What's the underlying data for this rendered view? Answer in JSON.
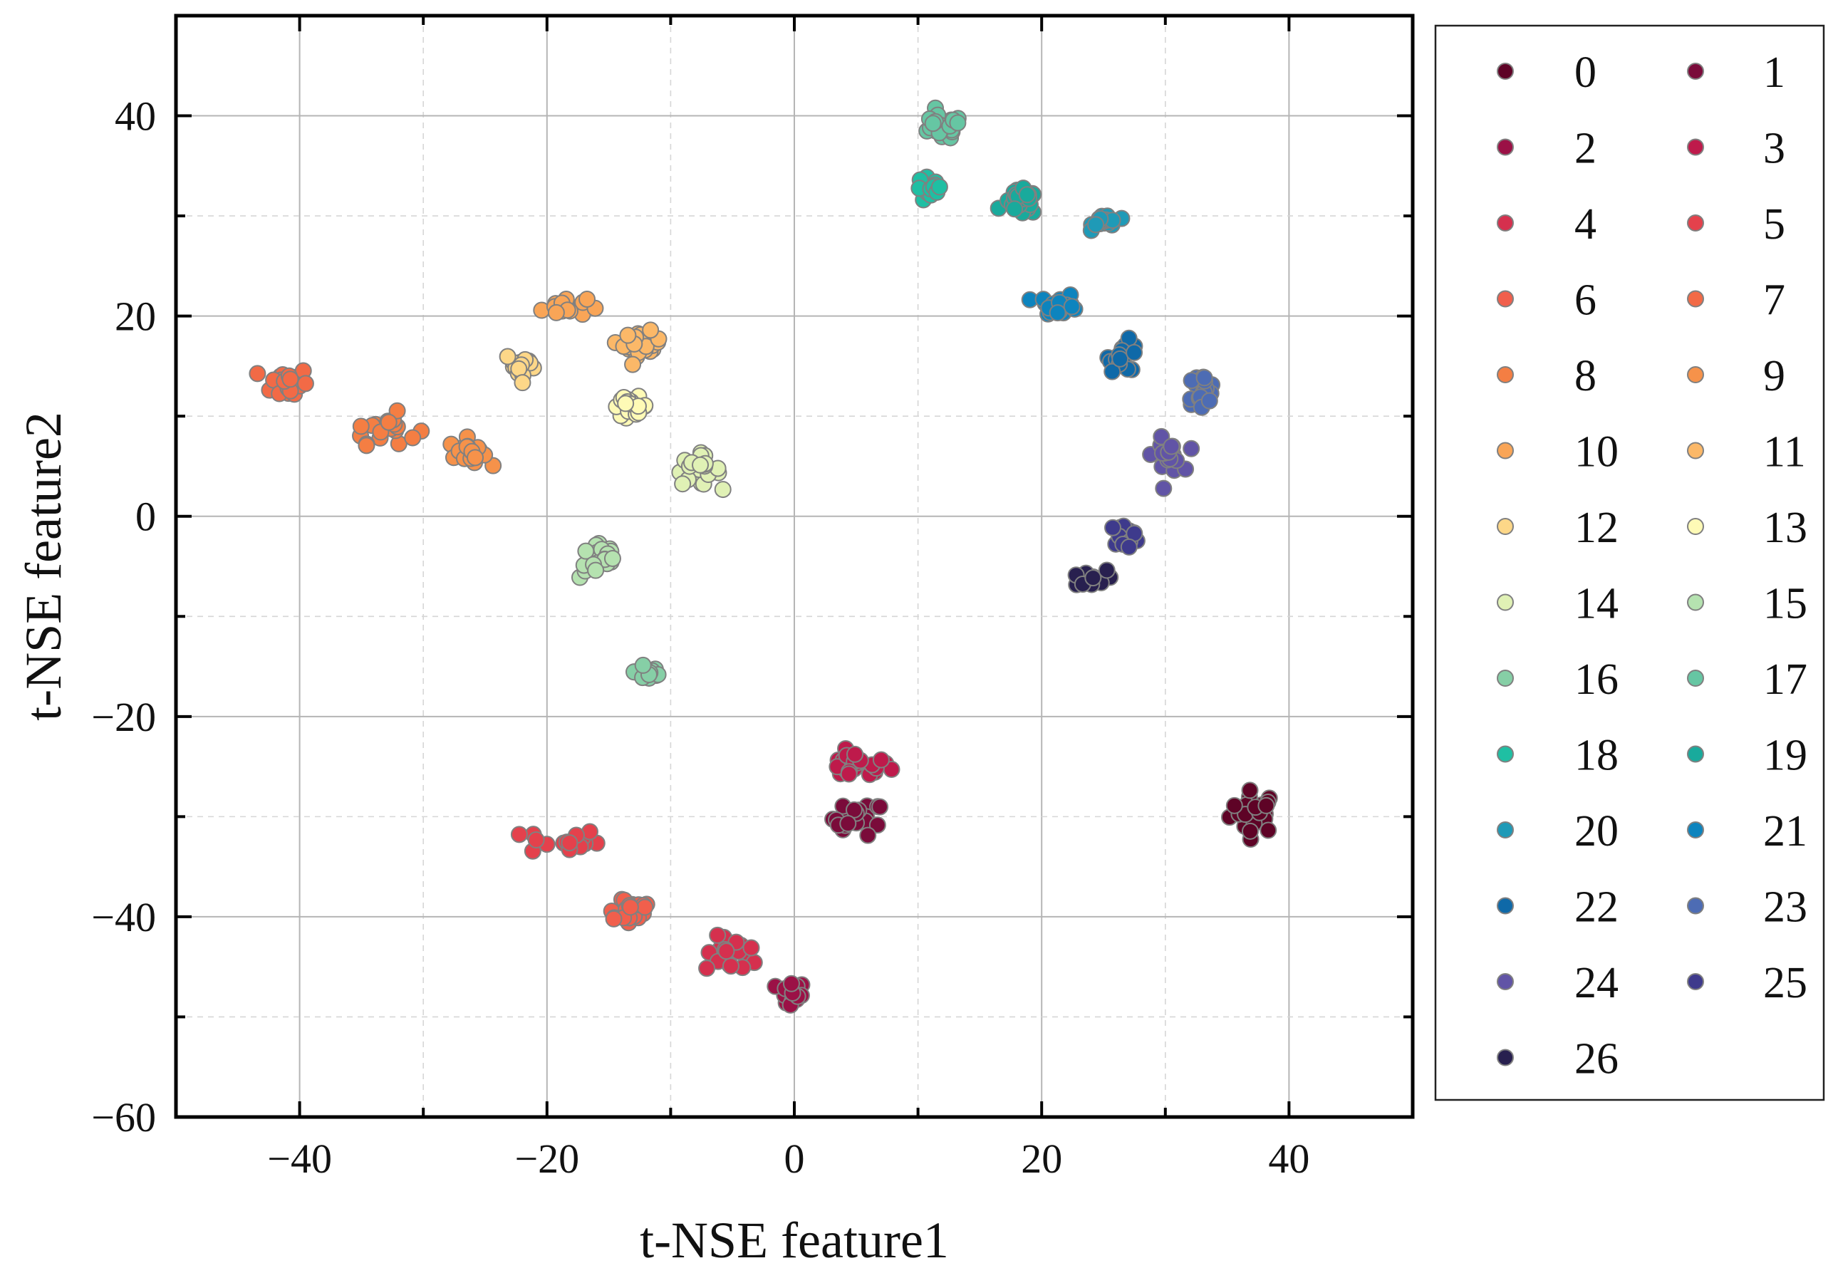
{
  "chart_data": {
    "type": "scatter",
    "xlabel": "t-NSE feature1",
    "ylabel": "t-NSE feature2",
    "xlim": [
      -50,
      50
    ],
    "ylim": [
      -60,
      50
    ],
    "x_ticks": [
      -40,
      -20,
      0,
      20,
      40
    ],
    "x_tick_labels": [
      "−40",
      "−20",
      "0",
      "20",
      "40"
    ],
    "y_ticks": [
      -60,
      -40,
      -20,
      0,
      20,
      40
    ],
    "y_tick_labels": [
      "−60",
      "−40",
      "−20",
      "0",
      "20",
      "40"
    ],
    "grid": true,
    "legend_position": "right-outside",
    "legend_columns": 2,
    "series": [
      {
        "name": "0",
        "color": "#5e0326",
        "center": [
          37.2,
          -29.5
        ],
        "spread": [
          1.3,
          1.4
        ],
        "n": 28
      },
      {
        "name": "1",
        "color": "#7a0b3a",
        "center": [
          5.2,
          -30.2
        ],
        "spread": [
          1.4,
          1.1
        ],
        "n": 22
      },
      {
        "name": "2",
        "color": "#9b1146",
        "center": [
          -0.3,
          -47.8
        ],
        "spread": [
          0.8,
          0.9
        ],
        "n": 16
      },
      {
        "name": "3",
        "color": "#be1a4b",
        "center": [
          5.0,
          -24.9
        ],
        "spread": [
          1.8,
          0.9
        ],
        "n": 24
      },
      {
        "name": "4",
        "color": "#d5304e",
        "center": [
          -4.8,
          -43.8
        ],
        "spread": [
          1.6,
          1.2
        ],
        "n": 20
      },
      {
        "name": "5",
        "color": "#e4414c",
        "center": [
          -18.8,
          -32.5
        ],
        "spread": [
          2.0,
          0.9
        ],
        "n": 20
      },
      {
        "name": "6",
        "color": "#f15f4c",
        "center": [
          -13.5,
          -39.2
        ],
        "spread": [
          1.6,
          1.1
        ],
        "n": 20
      },
      {
        "name": "7",
        "color": "#f26a46",
        "center": [
          -40.8,
          13.3
        ],
        "spread": [
          1.0,
          1.1
        ],
        "n": 26
      },
      {
        "name": "8",
        "color": "#f47e43",
        "center": [
          -33.2,
          8.8
        ],
        "spread": [
          1.8,
          1.0
        ],
        "n": 20
      },
      {
        "name": "9",
        "color": "#f6924a",
        "center": [
          -26.4,
          6.4
        ],
        "spread": [
          1.0,
          0.9
        ],
        "n": 22
      },
      {
        "name": "10",
        "color": "#f9a557",
        "center": [
          -18.6,
          20.9
        ],
        "spread": [
          1.2,
          0.6
        ],
        "n": 20
      },
      {
        "name": "11",
        "color": "#fbb868",
        "center": [
          -12.3,
          17.2
        ],
        "spread": [
          1.0,
          0.8
        ],
        "n": 26
      },
      {
        "name": "12",
        "color": "#fdd788",
        "center": [
          -22.0,
          15.0
        ],
        "spread": [
          0.9,
          1.0
        ],
        "n": 20
      },
      {
        "name": "13",
        "color": "#fefab6",
        "center": [
          -13.3,
          11.0
        ],
        "spread": [
          1.0,
          0.6
        ],
        "n": 18
      },
      {
        "name": "14",
        "color": "#e0f1b5",
        "center": [
          -7.8,
          4.6
        ],
        "spread": [
          1.2,
          1.0
        ],
        "n": 24
      },
      {
        "name": "15",
        "color": "#b5e2b0",
        "center": [
          -15.7,
          -4.3
        ],
        "spread": [
          1.1,
          1.3
        ],
        "n": 24
      },
      {
        "name": "16",
        "color": "#86cfa6",
        "center": [
          -11.7,
          -15.5
        ],
        "spread": [
          0.8,
          0.8
        ],
        "n": 16
      },
      {
        "name": "17",
        "color": "#66c6a3",
        "center": [
          11.8,
          38.8
        ],
        "spread": [
          1.2,
          0.8
        ],
        "n": 30
      },
      {
        "name": "18",
        "color": "#1fbfa3",
        "center": [
          11.0,
          32.6
        ],
        "spread": [
          0.8,
          0.9
        ],
        "n": 16
      },
      {
        "name": "19",
        "color": "#19aa9c",
        "center": [
          18.3,
          31.3
        ],
        "spread": [
          0.9,
          0.8
        ],
        "n": 26
      },
      {
        "name": "20",
        "color": "#1f9ab7",
        "center": [
          25.2,
          29.5
        ],
        "spread": [
          0.7,
          0.5
        ],
        "n": 18
      },
      {
        "name": "21",
        "color": "#0d84be",
        "center": [
          21.4,
          21.1
        ],
        "spread": [
          1.1,
          0.7
        ],
        "n": 24
      },
      {
        "name": "22",
        "color": "#0f69a8",
        "center": [
          26.7,
          16.0
        ],
        "spread": [
          0.8,
          1.0
        ],
        "n": 20
      },
      {
        "name": "23",
        "color": "#4d6cb4",
        "center": [
          32.9,
          12.7
        ],
        "spread": [
          0.8,
          1.0
        ],
        "n": 22
      },
      {
        "name": "24",
        "color": "#6154a6",
        "center": [
          30.2,
          6.1
        ],
        "spread": [
          0.8,
          1.1
        ],
        "n": 20
      },
      {
        "name": "25",
        "color": "#3e3a8c",
        "center": [
          26.7,
          -1.9
        ],
        "spread": [
          0.8,
          0.7
        ],
        "n": 20
      },
      {
        "name": "26",
        "color": "#28204f",
        "center": [
          23.6,
          -6.3
        ],
        "spread": [
          1.1,
          0.6
        ],
        "n": 18
      }
    ]
  }
}
